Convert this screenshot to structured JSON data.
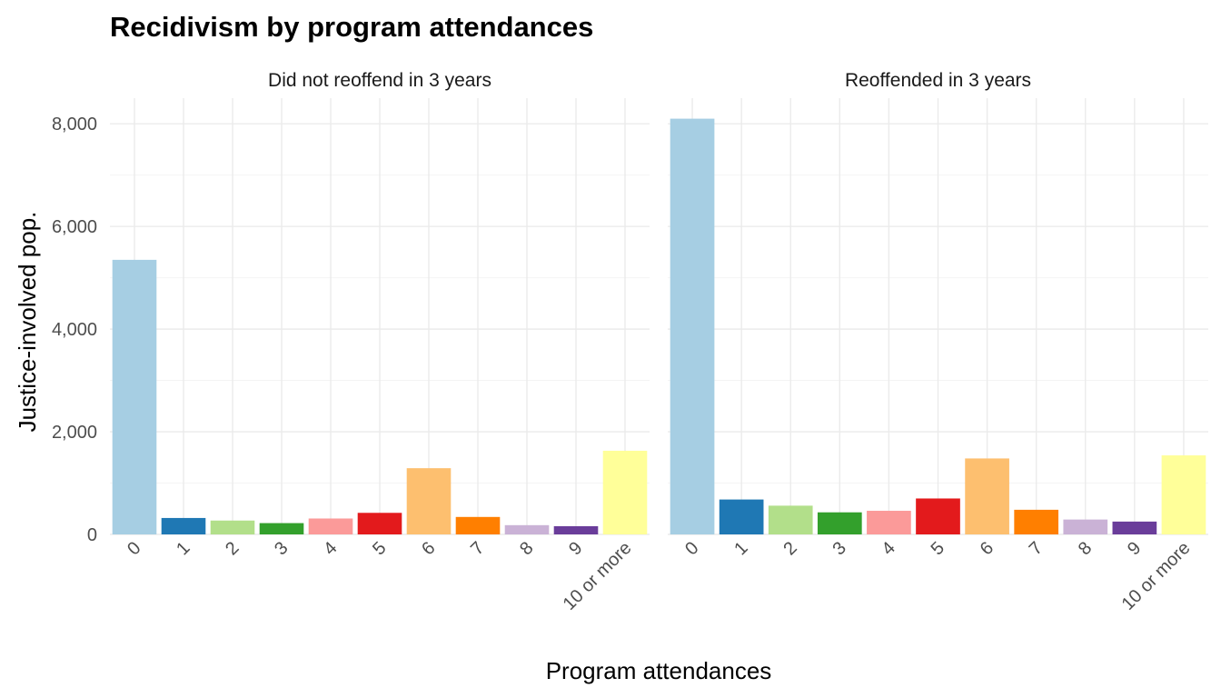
{
  "chart_data": {
    "type": "bar",
    "title": "Recidivism by program attendances",
    "xlabel": "Program attendances",
    "ylabel": "Justice-involved pop.",
    "ylim": [
      0,
      8500
    ],
    "yticks": [
      0,
      2000,
      4000,
      6000,
      8000
    ],
    "ytick_labels": [
      "0",
      "2,000",
      "4,000",
      "6,000",
      "8,000"
    ],
    "grid": true,
    "legend": "none",
    "categories": [
      "0",
      "1",
      "2",
      "3",
      "4",
      "5",
      "6",
      "7",
      "8",
      "9",
      "10 or more"
    ],
    "colors": [
      "#a6cee3",
      "#1f78b4",
      "#b2df8a",
      "#33a02c",
      "#fb9a99",
      "#e31a1c",
      "#fdbf6f",
      "#ff7f00",
      "#cab2d6",
      "#6a3d9a",
      "#ffff99"
    ],
    "facets": [
      {
        "label": "Did not reoffend in 3 years",
        "values": [
          5350,
          320,
          270,
          220,
          310,
          420,
          1290,
          340,
          180,
          160,
          1630
        ]
      },
      {
        "label": "Reoffended in 3 years",
        "values": [
          8100,
          680,
          560,
          430,
          460,
          700,
          1480,
          480,
          290,
          250,
          1540
        ]
      }
    ]
  }
}
